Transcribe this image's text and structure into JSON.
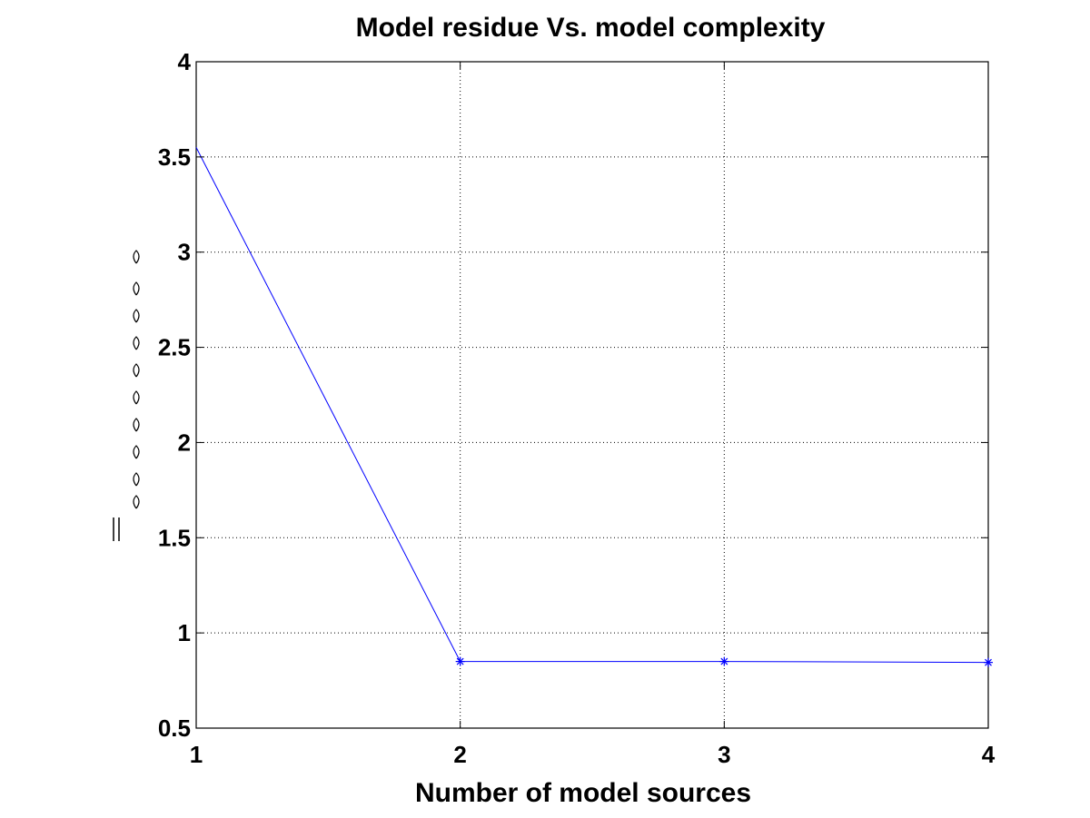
{
  "chart_data": {
    "type": "line",
    "title": "Model residue Vs. model complexity",
    "xlabel": "Number of model sources",
    "ylabel": "",
    "xlim": [
      1,
      4
    ],
    "ylim": [
      0.5,
      4
    ],
    "xticks": [
      1,
      2,
      3,
      4
    ],
    "yticks": [
      0.5,
      1,
      1.5,
      2,
      2.5,
      3,
      3.5,
      4
    ],
    "xtick_labels": [
      "1",
      "2",
      "3",
      "4"
    ],
    "ytick_labels": [
      "0.5",
      "1",
      "1.5",
      "2",
      "2.5",
      "3",
      "3.5",
      "4"
    ],
    "grid": true,
    "series": [
      {
        "x": [
          1,
          2,
          3,
          4
        ],
        "values": [
          3.55,
          0.85,
          0.85,
          0.845
        ],
        "color": "#0000ff",
        "marker": "asterisk",
        "marker_on_points": [
          false,
          true,
          true,
          true
        ]
      }
    ]
  }
}
